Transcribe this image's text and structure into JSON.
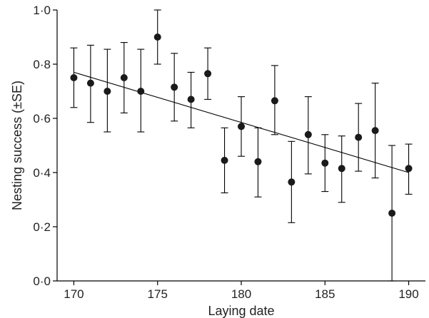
{
  "chart_data": {
    "type": "scatter",
    "title": "",
    "xlabel": "Laying date",
    "ylabel": "Nesting success (±SE)",
    "xlim": [
      169,
      191
    ],
    "ylim": [
      0,
      1
    ],
    "xticks": [
      170,
      175,
      180,
      185,
      190
    ],
    "xtick_labels": [
      "170",
      "175",
      "180",
      "185",
      "190"
    ],
    "yticks": [
      0,
      0.2,
      0.4,
      0.6,
      0.8,
      1.0
    ],
    "ytick_labels": [
      "0·0",
      "0·2",
      "0·4",
      "0·6",
      "0·8",
      "1·0"
    ],
    "grid": false,
    "legend": "none",
    "marker_color": "#1a1a1a",
    "series": [
      {
        "x": [
          170,
          171,
          172,
          173,
          174,
          175,
          176,
          177,
          178,
          179,
          180,
          181,
          182,
          183,
          184,
          185,
          186,
          187,
          188,
          189,
          190
        ],
        "y": [
          0.75,
          0.73,
          0.7,
          0.75,
          0.7,
          0.9,
          0.715,
          0.67,
          0.765,
          0.445,
          0.57,
          0.44,
          0.665,
          0.365,
          0.54,
          0.435,
          0.415,
          0.53,
          0.555,
          0.25,
          0.415
        ],
        "err_low": [
          0.64,
          0.585,
          0.55,
          0.62,
          0.55,
          0.8,
          0.59,
          0.565,
          0.67,
          0.325,
          0.46,
          0.31,
          0.54,
          0.215,
          0.395,
          0.33,
          0.29,
          0.405,
          0.38,
          0.0,
          0.32
        ],
        "err_high": [
          0.86,
          0.87,
          0.855,
          0.88,
          0.855,
          1.0,
          0.84,
          0.77,
          0.86,
          0.565,
          0.68,
          0.565,
          0.795,
          0.515,
          0.68,
          0.54,
          0.535,
          0.655,
          0.73,
          0.5,
          0.505
        ]
      }
    ],
    "trendline": {
      "x": [
        170,
        190
      ],
      "y": [
        0.77,
        0.4
      ]
    }
  }
}
